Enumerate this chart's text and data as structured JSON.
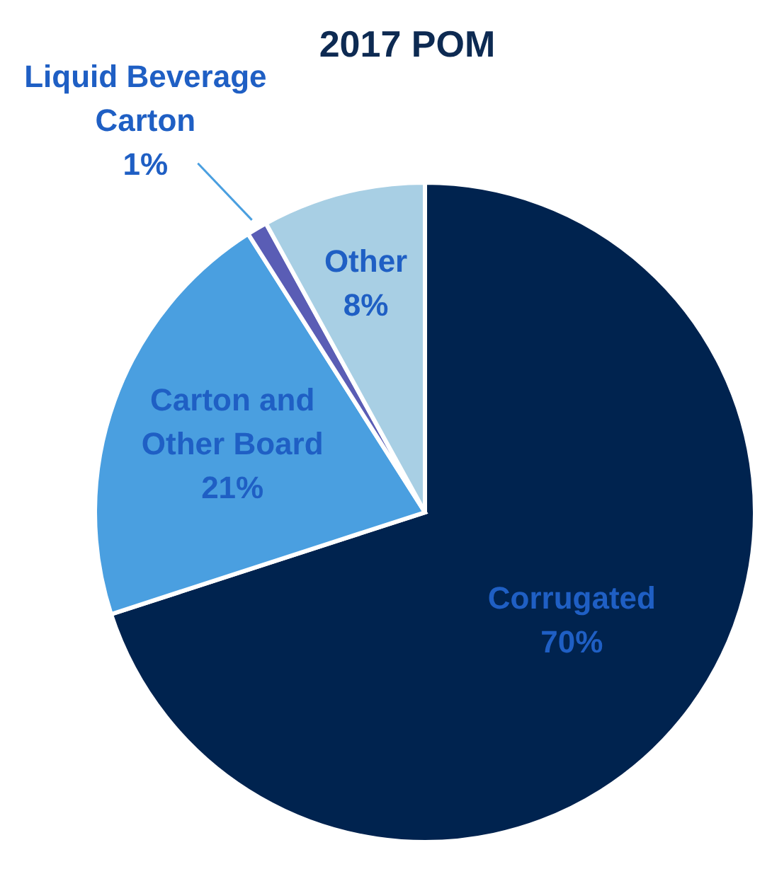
{
  "chart_data": {
    "type": "pie",
    "title": "2017 POM",
    "categories": [
      "Corrugated",
      "Carton and Other Board",
      "Liquid Beverage Carton",
      "Other"
    ],
    "values": [
      70,
      21,
      1,
      8
    ],
    "colors": [
      "#00234f",
      "#4a9fe0",
      "#5a5db5",
      "#a8cfe4"
    ],
    "value_labels": [
      "70%",
      "21%",
      "1%",
      "8%"
    ]
  }
}
